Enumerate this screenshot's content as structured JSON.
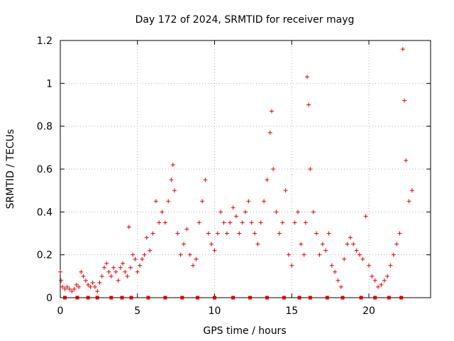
{
  "chart_data": {
    "type": "scatter",
    "title": "Day 172 of 2024, SRMTID for receiver mayg",
    "xlabel": "GPS time / hours",
    "ylabel": "SRMTID / TECUs",
    "xlim": [
      0,
      24
    ],
    "ylim": [
      0,
      1.2
    ],
    "grid": true,
    "x_ticks": [
      0,
      5,
      10,
      15,
      20
    ],
    "x_tick_labels": [
      "0",
      "5",
      "10",
      "15",
      "20"
    ],
    "y_ticks": [
      0,
      0.2,
      0.4,
      0.6,
      0.8,
      1.0,
      1.2
    ],
    "y_tick_labels": [
      "0",
      "0.2",
      "0.4",
      "0.6",
      "0.8",
      "1",
      "1.2"
    ],
    "marker": "+",
    "color": "#e00000",
    "series": [
      {
        "name": "SRMTID",
        "x": [
          0.0,
          0.05,
          0.15,
          0.3,
          0.45,
          0.6,
          0.75,
          0.9,
          1.05,
          1.2,
          1.35,
          1.5,
          1.65,
          1.8,
          1.95,
          2.1,
          2.25,
          2.4,
          2.55,
          2.7,
          2.85,
          3.0,
          3.15,
          3.3,
          3.45,
          3.6,
          3.75,
          3.9,
          4.05,
          4.2,
          4.35,
          4.45,
          4.55,
          4.7,
          4.85,
          5.0,
          5.15,
          5.3,
          5.45,
          5.6,
          5.8,
          6.0,
          6.2,
          6.4,
          6.6,
          6.8,
          7.0,
          7.2,
          7.3,
          7.4,
          7.6,
          7.8,
          8.0,
          8.2,
          8.4,
          8.6,
          8.8,
          9.0,
          9.2,
          9.4,
          9.6,
          9.8,
          10.0,
          10.2,
          10.4,
          10.6,
          10.8,
          11.0,
          11.2,
          11.4,
          11.6,
          11.8,
          12.0,
          12.2,
          12.4,
          12.6,
          12.8,
          13.0,
          13.2,
          13.4,
          13.6,
          13.7,
          13.8,
          14.0,
          14.2,
          14.4,
          14.6,
          14.8,
          15.0,
          15.2,
          15.4,
          15.6,
          15.8,
          15.9,
          16.0,
          16.1,
          16.2,
          16.4,
          16.6,
          16.8,
          17.0,
          17.2,
          17.4,
          17.6,
          17.8,
          18.0,
          18.2,
          18.4,
          18.6,
          18.8,
          19.0,
          19.2,
          19.4,
          19.6,
          19.8,
          20.0,
          20.2,
          20.4,
          20.6,
          20.8,
          21.0,
          21.2,
          21.4,
          21.6,
          21.8,
          22.0,
          22.2,
          22.3,
          22.4,
          22.6,
          22.8
        ],
        "y": [
          0.12,
          0.08,
          0.05,
          0.04,
          0.05,
          0.04,
          0.03,
          0.04,
          0.06,
          0.05,
          0.12,
          0.1,
          0.08,
          0.06,
          0.05,
          0.07,
          0.05,
          0.03,
          0.07,
          0.1,
          0.14,
          0.16,
          0.12,
          0.1,
          0.14,
          0.12,
          0.08,
          0.14,
          0.16,
          0.12,
          0.1,
          0.33,
          0.14,
          0.2,
          0.18,
          0.12,
          0.15,
          0.18,
          0.2,
          0.28,
          0.22,
          0.3,
          0.45,
          0.35,
          0.4,
          0.35,
          0.45,
          0.55,
          0.62,
          0.5,
          0.3,
          0.2,
          0.25,
          0.32,
          0.2,
          0.15,
          0.18,
          0.35,
          0.45,
          0.55,
          0.3,
          0.25,
          0.22,
          0.3,
          0.4,
          0.35,
          0.3,
          0.35,
          0.42,
          0.38,
          0.3,
          0.35,
          0.4,
          0.45,
          0.35,
          0.3,
          0.25,
          0.35,
          0.45,
          0.55,
          0.77,
          0.87,
          0.6,
          0.4,
          0.3,
          0.35,
          0.5,
          0.2,
          0.15,
          0.35,
          0.4,
          0.25,
          0.2,
          0.35,
          1.03,
          0.9,
          0.6,
          0.4,
          0.3,
          0.2,
          0.25,
          0.22,
          0.3,
          0.15,
          0.12,
          0.08,
          0.05,
          0.18,
          0.25,
          0.28,
          0.25,
          0.22,
          0.2,
          0.18,
          0.38,
          0.15,
          0.1,
          0.08,
          0.05,
          0.06,
          0.08,
          0.1,
          0.15,
          0.2,
          0.25,
          0.3,
          1.16,
          0.92,
          0.64,
          0.45,
          0.5
        ]
      }
    ],
    "baseline_markers_x": [
      0.3,
      1.1,
      1.8,
      2.4,
      3.3,
      4.0,
      4.6,
      5.7,
      6.8,
      7.9,
      8.9,
      10.0,
      11.2,
      12.3,
      13.4,
      14.5,
      15.5,
      16.2,
      17.3,
      18.3,
      19.5,
      20.4,
      21.3,
      22.1
    ]
  }
}
